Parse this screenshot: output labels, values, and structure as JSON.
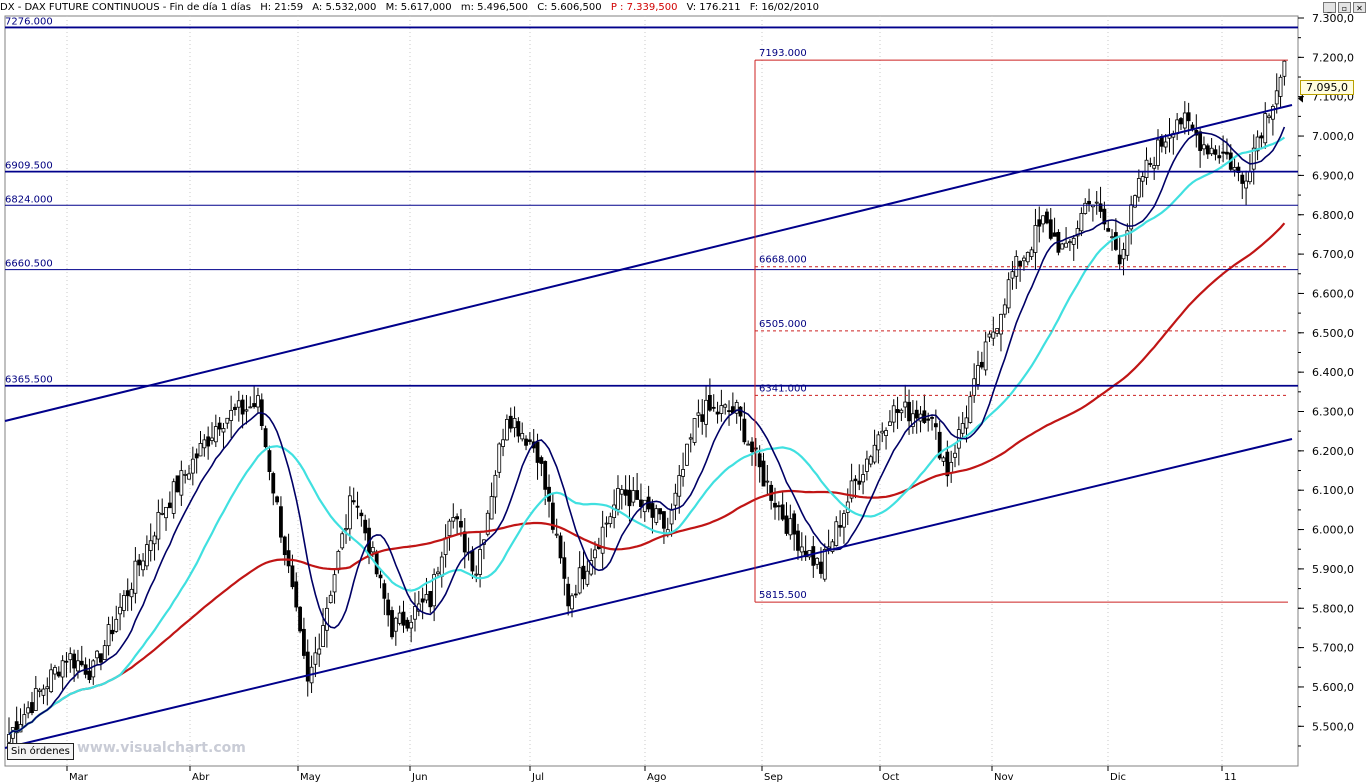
{
  "header": {
    "symbol": "DX - DAX FUTURE CONTINUOUS - Fin de día 1 días",
    "hour": "H: 21:59",
    "open": "A: 5.532,000",
    "max": "M: 5.617,000",
    "min": "m: 5.496,500",
    "close": "C: 5.606,500",
    "p": "P : 7.339,500",
    "volume": "V: 176.211",
    "date": "F: 16/02/2010"
  },
  "window_buttons": [
    "_",
    "▫",
    "✕"
  ],
  "status": {
    "orders": "Sin órdenes"
  },
  "watermark": "www.visualchart.com",
  "chart_data": {
    "type": "candlestick",
    "y_axis": {
      "range": [
        5420,
        7320
      ],
      "ticks": [
        "7.300,0",
        "7.200,0",
        "7.100,0",
        "7.000,0",
        "6.900,0",
        "6.800,0",
        "6.700,0",
        "6.600,0",
        "6.500,0",
        "6.400,0",
        "6.300,0",
        "6.200,0",
        "6.100,0",
        "6.000,0",
        "5.900,0",
        "5.800,0",
        "5.700,0",
        "5.600,0",
        "5.500,0"
      ],
      "tick_values": [
        7300,
        7200,
        7100,
        7000,
        6900,
        6800,
        6700,
        6600,
        6500,
        6400,
        6300,
        6200,
        6100,
        6000,
        5900,
        5800,
        5700,
        5600,
        5500
      ]
    },
    "x_axis": {
      "months": [
        "Mar",
        "Abr",
        "May",
        "Jun",
        "Jul",
        "Ago",
        "Sep",
        "Oct",
        "Nov",
        "Dic",
        "11"
      ]
    },
    "last_price": "7.095,0",
    "horizontal_levels": [
      {
        "label": "7276.000",
        "value": 7276,
        "style": "solid-thick"
      },
      {
        "label": "6909.500",
        "value": 6909.5,
        "style": "solid-thick"
      },
      {
        "label": "6824.000",
        "value": 6824,
        "style": "solid"
      },
      {
        "label": "6660.500",
        "value": 6660.5,
        "style": "solid"
      },
      {
        "label": "6365.500",
        "value": 6365.5,
        "style": "solid-thick"
      }
    ],
    "fibonacci": {
      "high": {
        "label": "7193.000",
        "value": 7193
      },
      "low": {
        "label": "5815.500",
        "value": 5815.5
      },
      "levels": [
        {
          "label": "6668.000",
          "value": 6668
        },
        {
          "label": "6505.000",
          "value": 6505
        },
        {
          "label": "6341.000",
          "value": 6341
        }
      ]
    },
    "colors": {
      "level_line": "#00008b",
      "fib_line": "#cc2020",
      "ma_fast": "#000066",
      "ma_mid": "#40e0e0",
      "ma_slow": "#c01515",
      "up_candle": "#ffffff",
      "down_candle": "#000000"
    }
  }
}
